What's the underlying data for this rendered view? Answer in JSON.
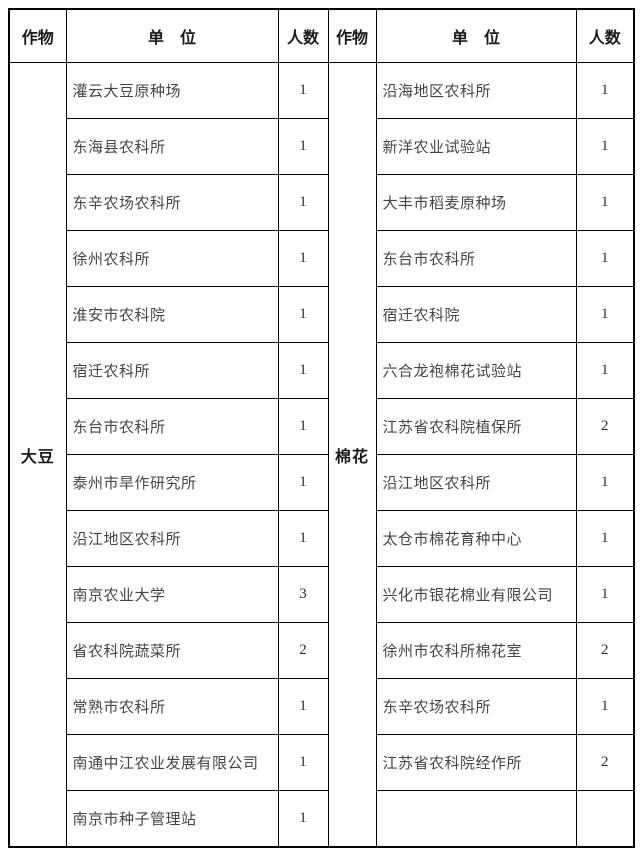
{
  "page": {
    "background_color": "#ffffff",
    "border_color": "#000000",
    "header_text_color": "#1a1a1a",
    "body_text_color": "#454545"
  },
  "table": {
    "headers": {
      "crop": "作物",
      "unit": "单　位",
      "count": "人数"
    },
    "left": {
      "crop": "大豆",
      "rows": [
        {
          "unit": "灌云大豆原种场",
          "count": "1"
        },
        {
          "unit": "东海县农科所",
          "count": "1"
        },
        {
          "unit": "东辛农场农科所",
          "count": "1"
        },
        {
          "unit": "徐州农科所",
          "count": "1"
        },
        {
          "unit": "淮安市农科院",
          "count": "1"
        },
        {
          "unit": "宿迁农科所",
          "count": "1"
        },
        {
          "unit": "东台市农科所",
          "count": "1"
        },
        {
          "unit": "泰州市旱作研究所",
          "count": "1"
        },
        {
          "unit": "沿江地区农科所",
          "count": "1"
        },
        {
          "unit": "南京农业大学",
          "count": "3"
        },
        {
          "unit": "省农科院蔬菜所",
          "count": "2"
        },
        {
          "unit": "常熟市农科所",
          "count": "1"
        },
        {
          "unit": "南通中江农业发展有限公司",
          "count": "1"
        },
        {
          "unit": "南京市种子管理站",
          "count": "1"
        }
      ]
    },
    "right": {
      "crop": "棉花",
      "rows": [
        {
          "unit": "沿海地区农科所",
          "count": "1"
        },
        {
          "unit": "新洋农业试验站",
          "count": "1"
        },
        {
          "unit": "大丰市稻麦原种场",
          "count": "1"
        },
        {
          "unit": "东台市农科所",
          "count": "1"
        },
        {
          "unit": "宿迁农科院",
          "count": "1"
        },
        {
          "unit": "六合龙袍棉花试验站",
          "count": "1"
        },
        {
          "unit": "江苏省农科院植保所",
          "count": "2"
        },
        {
          "unit": "沿江地区农科所",
          "count": "1"
        },
        {
          "unit": "太仓市棉花育种中心",
          "count": "1"
        },
        {
          "unit": "兴化市银花棉业有限公司",
          "count": "1"
        },
        {
          "unit": "徐州市农科所棉花室",
          "count": "2"
        },
        {
          "unit": "东辛农场农科所",
          "count": "1"
        },
        {
          "unit": "江苏省农科院经作所",
          "count": "2"
        },
        {
          "unit": "",
          "count": ""
        }
      ]
    }
  }
}
